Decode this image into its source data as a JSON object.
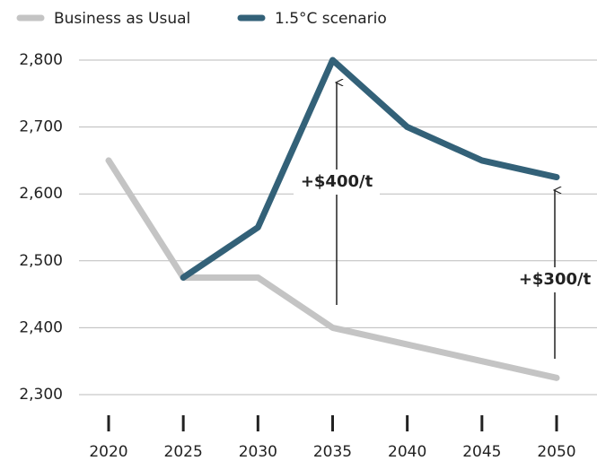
{
  "chart_data": {
    "type": "line",
    "x": [
      2020,
      2025,
      2030,
      2035,
      2040,
      2045,
      2050
    ],
    "xlim": [
      2020,
      2050
    ],
    "xticks": [
      2020,
      2025,
      2030,
      2035,
      2040,
      2045,
      2050
    ],
    "ylim": [
      2300,
      2800
    ],
    "yticks": [
      {
        "value": 2300,
        "label": "2,300"
      },
      {
        "value": 2400,
        "label": "2,400"
      },
      {
        "value": 2500,
        "label": "2,500"
      },
      {
        "value": 2600,
        "label": "2,600"
      },
      {
        "value": 2700,
        "label": "2,700"
      },
      {
        "value": 2800,
        "label": "2,800"
      }
    ],
    "grid": true,
    "legend": "top",
    "series": [
      {
        "name": "Business as Usual",
        "color": "#c4c4c4",
        "values": [
          2650,
          2475,
          2475,
          2400,
          2375,
          2350,
          2325
        ]
      },
      {
        "name": "1.5°C scenario",
        "color": "#336178",
        "values": [
          null,
          2475,
          2550,
          2800,
          2700,
          2650,
          2625
        ]
      }
    ],
    "annotations": [
      "+$400/t",
      "+$300/t"
    ]
  }
}
